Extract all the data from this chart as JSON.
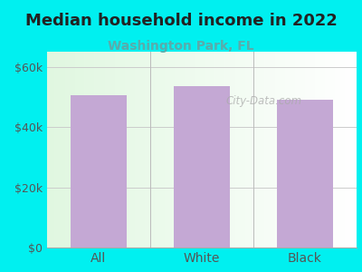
{
  "title": "Median household income in 2022",
  "subtitle": "Washington Park, FL",
  "categories": [
    "All",
    "White",
    "Black"
  ],
  "values": [
    50500,
    53500,
    49000
  ],
  "bar_color": "#c4a8d4",
  "background_color": "#00f0f0",
  "title_fontsize": 13,
  "subtitle_fontsize": 10,
  "tick_label_color": "#555555",
  "subtitle_color": "#5aabab",
  "title_color": "#222222",
  "ylim": [
    0,
    65000
  ],
  "yticks": [
    0,
    20000,
    40000,
    60000
  ],
  "ytick_labels": [
    "$0",
    "$20k",
    "$40k",
    "$60k"
  ],
  "watermark": "City-Data.com"
}
